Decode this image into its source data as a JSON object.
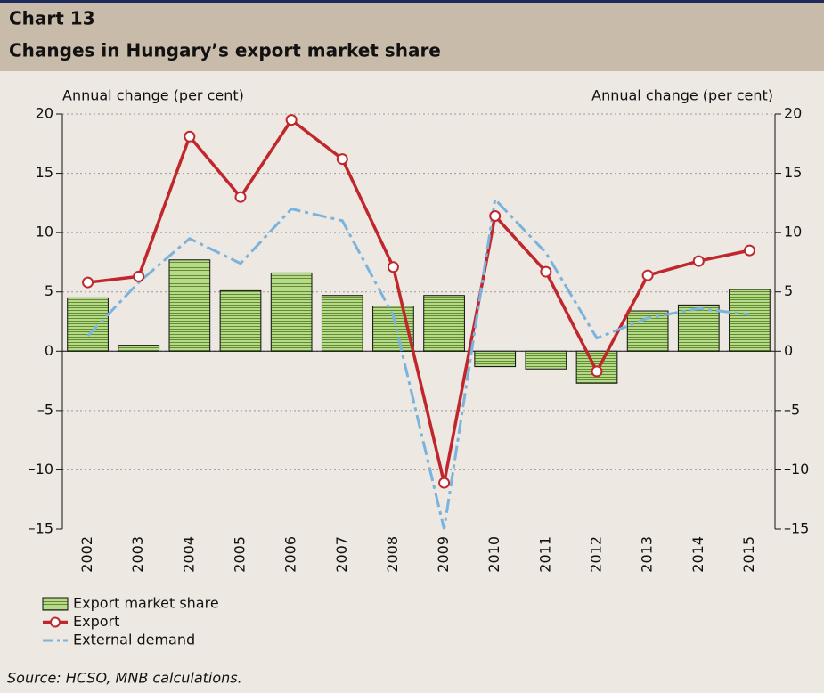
{
  "chart_data": {
    "type": "bar-line",
    "chart_number": "Chart 13",
    "title": "Changes in Hungary’s export market share",
    "y_label": "Annual change (per cent)",
    "y2_label": "Annual change (per cent)",
    "source": "Source: HCSO, MNB calculations.",
    "categories": [
      "2002",
      "2003",
      "2004",
      "2005",
      "2006",
      "2007",
      "2008",
      "2009",
      "2010",
      "2011",
      "2012",
      "2013",
      "2014",
      "2015"
    ],
    "series": [
      {
        "name": "Export market share",
        "kind": "bar",
        "color": "#9bc26b",
        "values": [
          4.5,
          0.5,
          7.7,
          5.1,
          6.6,
          4.7,
          3.8,
          4.7,
          -1.3,
          -1.5,
          -2.7,
          3.4,
          3.9,
          5.2
        ]
      },
      {
        "name": "Export",
        "kind": "line",
        "color": "#c0272d",
        "values": [
          5.8,
          6.3,
          18.1,
          13.0,
          19.5,
          16.2,
          7.1,
          -11.1,
          11.4,
          6.7,
          -1.7,
          6.4,
          7.6,
          8.5
        ]
      },
      {
        "name": "External demand",
        "kind": "dashed",
        "color": "#7ab3dd",
        "values": [
          1.3,
          5.8,
          9.5,
          7.4,
          12.0,
          11.0,
          3.0,
          -15.0,
          12.8,
          8.3,
          1.1,
          2.8,
          3.6,
          3.1
        ]
      }
    ],
    "ylim": [
      -15,
      20
    ],
    "yticks": [
      {
        "value": -15,
        "label": "–15"
      },
      {
        "value": -10,
        "label": "–10"
      },
      {
        "value": -5,
        "label": "–5"
      },
      0,
      5,
      10,
      15,
      20
    ],
    "y2lim": [
      -15,
      20
    ],
    "y2ticks": [
      {
        "value": -15,
        "label": "–15"
      },
      {
        "value": -10,
        "label": "–10"
      },
      {
        "value": -5,
        "label": "–5"
      },
      0,
      5,
      10,
      15,
      20
    ],
    "grid": true
  }
}
